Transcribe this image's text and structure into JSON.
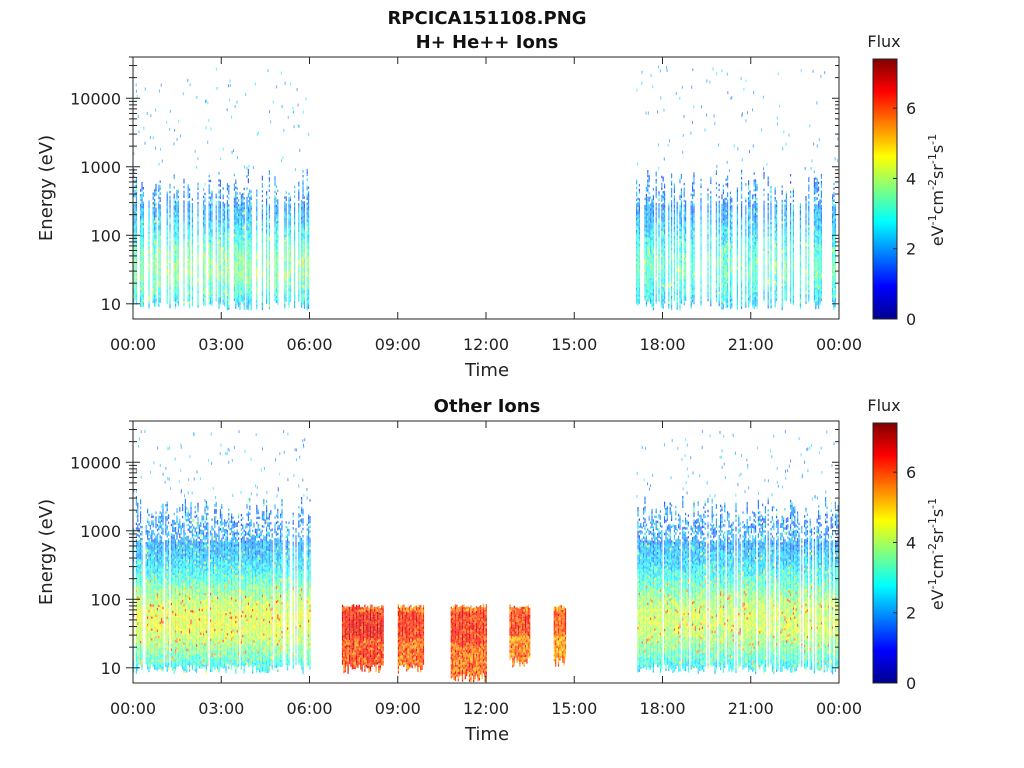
{
  "chart_data": [
    {
      "type": "heatmap",
      "title": "RPCICA151108.PNG",
      "subtitle": "H+ He++ Ions",
      "xlabel": "Time",
      "ylabel": "Energy (eV)",
      "x_tick_labels": [
        "00:00",
        "03:00",
        "06:00",
        "09:00",
        "12:00",
        "15:00",
        "18:00",
        "21:00",
        "00:00"
      ],
      "x_ticks_hours": [
        0,
        3,
        6,
        9,
        12,
        15,
        18,
        21,
        24
      ],
      "xlim_hours": [
        0,
        24
      ],
      "y_scale": "log",
      "ylim": [
        6,
        40000
      ],
      "y_ticks": [
        10,
        100,
        1000,
        10000
      ],
      "y_tick_labels": [
        "10",
        "100",
        "1000",
        "10000"
      ],
      "colorbar": {
        "title": "Flux",
        "label": "eV-1cm-2sr-1s-1",
        "range": [
          0,
          7.4
        ],
        "ticks": [
          0,
          2,
          4,
          6
        ],
        "tick_labels": [
          "0",
          "2",
          "4",
          "6"
        ],
        "colormap": "jet"
      },
      "data_blocks": [
        {
          "start_hour": 0.0,
          "end_hour": 6.0,
          "emin": 8,
          "emax": 900,
          "core_flux": 3.6,
          "peak_flux": 5.0,
          "density": 0.55
        },
        {
          "start_hour": 17.1,
          "end_hour": 24.0,
          "emin": 8,
          "emax": 900,
          "core_flux": 3.2,
          "peak_flux": 4.6,
          "density": 0.5
        }
      ]
    },
    {
      "type": "heatmap",
      "title": "Other Ions",
      "xlabel": "Time",
      "ylabel": "Energy (eV)",
      "x_tick_labels": [
        "00:00",
        "03:00",
        "06:00",
        "09:00",
        "12:00",
        "15:00",
        "18:00",
        "21:00",
        "00:00"
      ],
      "x_ticks_hours": [
        0,
        3,
        6,
        9,
        12,
        15,
        18,
        21,
        24
      ],
      "xlim_hours": [
        0,
        24
      ],
      "y_scale": "log",
      "ylim": [
        6,
        40000
      ],
      "y_ticks": [
        10,
        100,
        1000,
        10000
      ],
      "y_tick_labels": [
        "10",
        "100",
        "1000",
        "10000"
      ],
      "colorbar": {
        "title": "Flux",
        "label": "eV-1cm-2sr-1s-1",
        "range": [
          0,
          7.4
        ],
        "ticks": [
          0,
          2,
          4,
          6
        ],
        "tick_labels": [
          "0",
          "2",
          "4",
          "6"
        ],
        "colormap": "jet"
      },
      "data_blocks": [
        {
          "start_hour": 0.0,
          "end_hour": 6.0,
          "emin": 8,
          "emax": 3000,
          "core_flux": 4.4,
          "peak_flux": 6.2,
          "density": 0.85
        },
        {
          "start_hour": 7.1,
          "end_hour": 8.5,
          "emin": 8,
          "emax": 80,
          "core_flux": 5.8,
          "peak_flux": 6.8,
          "density": 1.0
        },
        {
          "start_hour": 9.0,
          "end_hour": 9.9,
          "emin": 8,
          "emax": 80,
          "core_flux": 5.6,
          "peak_flux": 6.6,
          "density": 1.0
        },
        {
          "start_hour": 10.8,
          "end_hour": 12.0,
          "emin": 6,
          "emax": 80,
          "core_flux": 5.6,
          "peak_flux": 6.6,
          "density": 1.0
        },
        {
          "start_hour": 12.8,
          "end_hour": 13.5,
          "emin": 10,
          "emax": 80,
          "core_flux": 5.4,
          "peak_flux": 6.6,
          "density": 1.0
        },
        {
          "start_hour": 14.3,
          "end_hour": 14.7,
          "emin": 10,
          "emax": 80,
          "core_flux": 5.2,
          "peak_flux": 6.4,
          "density": 1.0
        },
        {
          "start_hour": 17.1,
          "end_hour": 24.0,
          "emin": 8,
          "emax": 3000,
          "core_flux": 4.2,
          "peak_flux": 6.0,
          "density": 0.85
        }
      ]
    }
  ]
}
